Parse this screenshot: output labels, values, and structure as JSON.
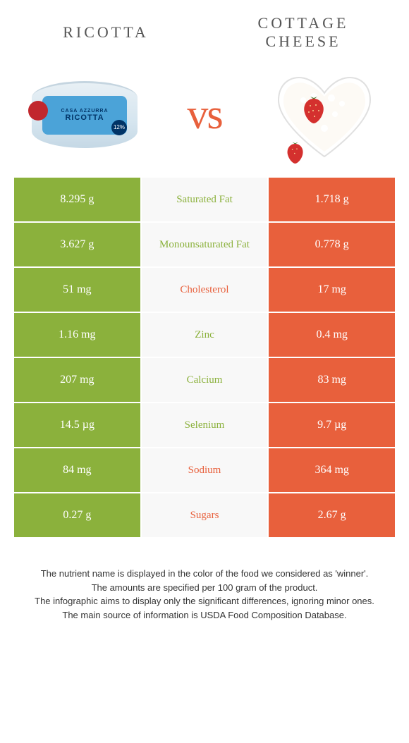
{
  "left_food": {
    "title": "RICOTTA"
  },
  "right_food": {
    "title": "COTTAGE CHEESE"
  },
  "vs": "vs",
  "ricotta_label": {
    "brand": "CASA AZZURRA",
    "name": "RICOTTA",
    "pct": "12%"
  },
  "colors": {
    "left_bg": "#8bb13c",
    "right_bg": "#e8603c",
    "mid_bg": "#f8f8f8"
  },
  "rows": [
    {
      "left": "8.295 g",
      "label": "Saturated Fat",
      "right": "1.718 g",
      "winner": "left"
    },
    {
      "left": "3.627 g",
      "label": "Monounsaturated Fat",
      "right": "0.778 g",
      "winner": "left"
    },
    {
      "left": "51 mg",
      "label": "Cholesterol",
      "right": "17 mg",
      "winner": "right"
    },
    {
      "left": "1.16 mg",
      "label": "Zinc",
      "right": "0.4 mg",
      "winner": "left"
    },
    {
      "left": "207 mg",
      "label": "Calcium",
      "right": "83 mg",
      "winner": "left"
    },
    {
      "left": "14.5 µg",
      "label": "Selenium",
      "right": "9.7 µg",
      "winner": "left"
    },
    {
      "left": "84 mg",
      "label": "Sodium",
      "right": "364 mg",
      "winner": "right"
    },
    {
      "left": "0.27 g",
      "label": "Sugars",
      "right": "2.67 g",
      "winner": "right"
    }
  ],
  "footer": [
    "The nutrient name is displayed in the color of the food we considered as 'winner'.",
    "The amounts are specified per 100 gram of the product.",
    "The infographic aims to display only the significant differences, ignoring minor ones.",
    "The main source of information is USDA Food Composition Database."
  ]
}
